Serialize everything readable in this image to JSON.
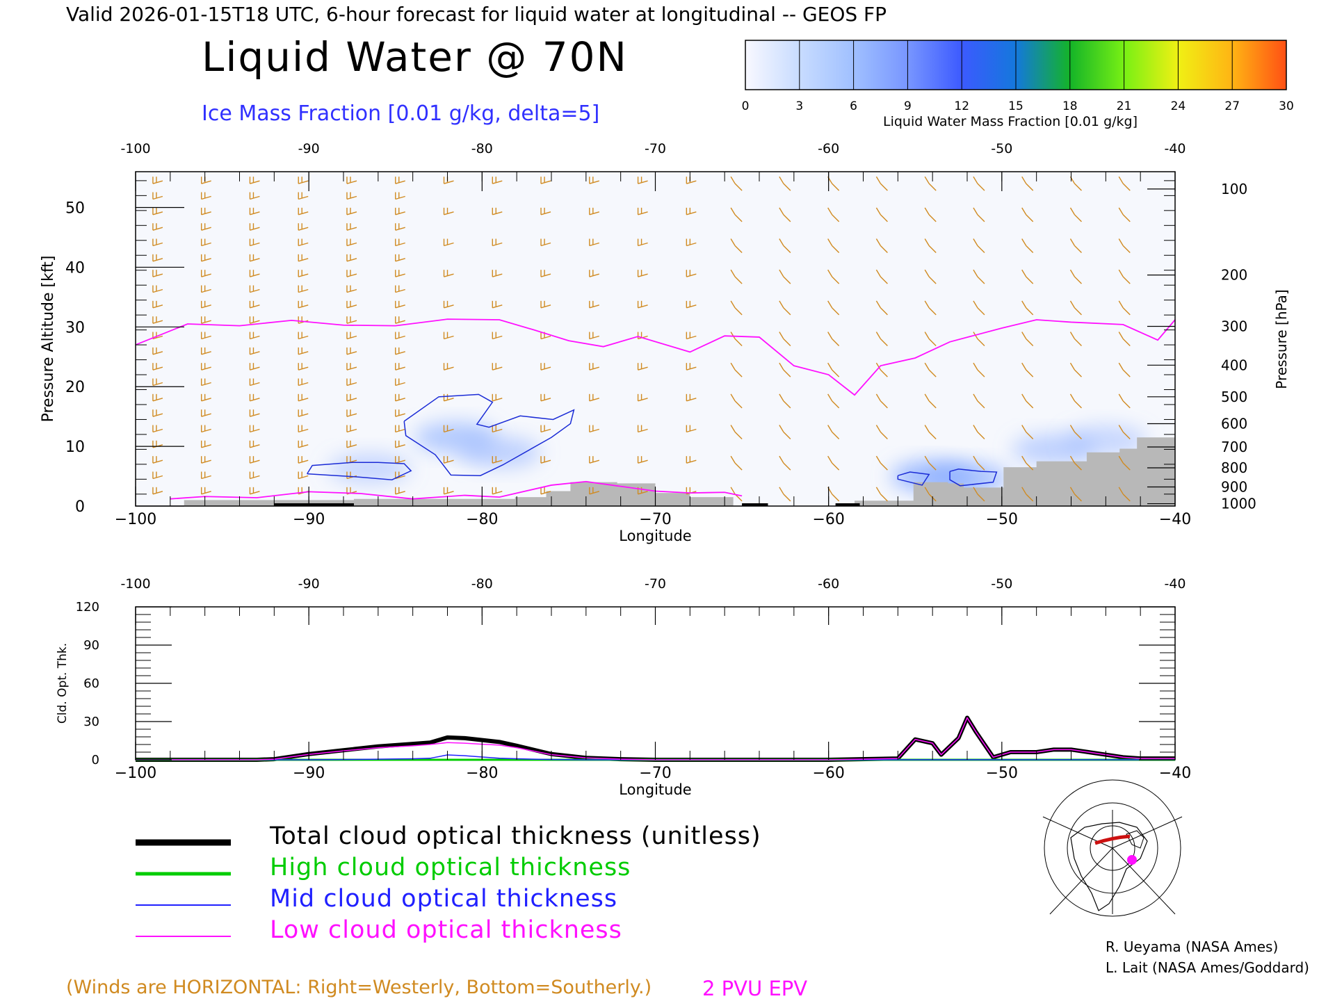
{
  "header": {
    "title_line": "Valid 2026-01-15T18 UTC, 6-hour forecast for liquid water at longitudinal -- GEOS FP",
    "main_title": "Liquid Water @ 70N",
    "contour_label": "Ice Mass Fraction [0.01 g/kg, delta=5]"
  },
  "colorbar": {
    "title": "Liquid Water Mass Fraction [0.01 g/kg]",
    "ticks": [
      "0",
      "3",
      "6",
      "9",
      "12",
      "15",
      "18",
      "21",
      "24",
      "27",
      "30"
    ],
    "colors": [
      "#f8f8ff",
      "#c8dcff",
      "#a0c0ff",
      "#7896ff",
      "#3c5aff",
      "#1478dc",
      "#14b428",
      "#78f014",
      "#f0f014",
      "#ffb414",
      "#ff5014"
    ]
  },
  "colors": {
    "ice_contour": "#1a2bd6",
    "epv_contour": "#ff10ff",
    "wind_barbs": "#d08a20",
    "terrain": "#b8b8b8",
    "total_line": "#000000",
    "high_line": "#00cc00",
    "mid_line": "#2020ff",
    "low_line": "#ff10ff"
  },
  "chart_data": [
    {
      "type": "heatmap",
      "xlabel": "Longitude",
      "ylabel_left": "Pressure Altitude [kft]",
      "ylabel_right": "Pressure [hPa]",
      "x_ticks": [
        "-100",
        "-90",
        "-80",
        "-70",
        "-60",
        "-50",
        "-40"
      ],
      "x_ticks_bottom": [
        "−100",
        "−90",
        "−80",
        "−70",
        "−60",
        "−50",
        "−40"
      ],
      "xlim": [
        -100,
        -40
      ],
      "y_ticks": [
        "0",
        "10",
        "20",
        "30",
        "40",
        "50"
      ],
      "ylim": [
        0,
        56
      ],
      "pressure_ticks": [
        {
          "label": "100",
          "kft": 53.1
        },
        {
          "label": "200",
          "kft": 38.7
        },
        {
          "label": "300",
          "kft": 30.1
        },
        {
          "label": "400",
          "kft": 23.6
        },
        {
          "label": "500",
          "kft": 18.3
        },
        {
          "label": "600",
          "kft": 13.8
        },
        {
          "label": "700",
          "kft": 9.9
        },
        {
          "label": "800",
          "kft": 6.4
        },
        {
          "label": "900",
          "kft": 3.2
        },
        {
          "label": "1000",
          "kft": 0.4
        }
      ],
      "epv_2pvu_tropopause": {
        "lon": [
          -100,
          -97,
          -94,
          -91,
          -88,
          -85,
          -82,
          -79,
          -77,
          -75,
          -73,
          -71,
          -68,
          -66,
          -64,
          -62,
          -60,
          -58.5,
          -57,
          -55,
          -53,
          -50,
          -48,
          -46,
          -43,
          -41,
          -40
        ],
        "kft": [
          27,
          30.5,
          30.2,
          31.1,
          30.3,
          30.2,
          31.3,
          31.2,
          29.5,
          27.7,
          26.7,
          28.4,
          25.8,
          28.5,
          28.3,
          23.5,
          22,
          18.6,
          23.5,
          24.8,
          27.5,
          29.8,
          31.2,
          30.8,
          30.4,
          27.8,
          31.2
        ]
      },
      "epv_low_contour": {
        "lon": [
          -98,
          -96,
          -93,
          -90,
          -87,
          -84,
          -81,
          -79,
          -76,
          -74,
          -72,
          -70,
          -68,
          -66,
          -65
        ],
        "kft": [
          1.2,
          1.6,
          1.4,
          2.4,
          2.1,
          1.2,
          1.8,
          1.5,
          3.5,
          4.1,
          3.3,
          2.5,
          2.2,
          2.3,
          1.7
        ]
      },
      "ice_contours": [
        {
          "lon": [
            -84.5,
            -82.5,
            -80.2,
            -79.4,
            -80.3,
            -79.6,
            -77.8,
            -75.9,
            -74.7,
            -74.9,
            -76,
            -78.8,
            -80.1,
            -81.8,
            -82.7,
            -84.4,
            -84.5
          ],
          "kft": [
            14.2,
            18.3,
            18.7,
            17.4,
            13.7,
            13.2,
            15.1,
            14.5,
            16.1,
            13.8,
            11.5,
            6.9,
            5.1,
            5.2,
            8.6,
            11.8,
            14.2
          ]
        },
        {
          "lon": [
            -90.1,
            -89.8,
            -87.5,
            -86,
            -84.5,
            -84.1,
            -85.2,
            -87.3,
            -90.1
          ],
          "kft": [
            5.4,
            6.8,
            7.3,
            7.3,
            7.1,
            5.9,
            4.4,
            4.9,
            5.4
          ]
        },
        {
          "lon": [
            -56,
            -55.3,
            -54.2,
            -54.6,
            -56,
            -56
          ],
          "kft": [
            5.1,
            5.7,
            5.3,
            3.5,
            4.5,
            5.1
          ]
        },
        {
          "lon": [
            -53,
            -52.5,
            -51.2,
            -50.3,
            -50.5,
            -52.4,
            -53,
            -53
          ],
          "kft": [
            5.8,
            6.2,
            5.8,
            5.7,
            4,
            3.4,
            4.4,
            5.8
          ]
        }
      ],
      "liquid_water_patches": [
        {
          "lon": -81.5,
          "kft": 11.5,
          "value": 4
        },
        {
          "lon": -79,
          "kft": 9,
          "value": 3
        },
        {
          "lon": -86.5,
          "kft": 6.3,
          "value": 2
        },
        {
          "lon": -54,
          "kft": 5,
          "value": 6
        },
        {
          "lon": -52,
          "kft": 4.6,
          "value": 5
        },
        {
          "lon": -47,
          "kft": 9.5,
          "value": 3
        },
        {
          "lon": -44,
          "kft": 11,
          "value": 2
        }
      ],
      "terrain_top_kft": [
        {
          "lon": [
            -100,
            -97.2
          ],
          "kft": 0
        },
        {
          "lon": [
            -97.2,
            -87.4
          ],
          "kft": 1
        },
        {
          "lon": [
            -87.4,
            -78.1
          ],
          "kft": 1.2
        },
        {
          "lon": [
            -78.1,
            -76.3
          ],
          "kft": 1.5
        },
        {
          "lon": [
            -76.3,
            -74.9
          ],
          "kft": 2.5
        },
        {
          "lon": [
            -74.9,
            -72.2
          ],
          "kft": 4
        },
        {
          "lon": [
            -72.2,
            -70
          ],
          "kft": 3.8
        },
        {
          "lon": [
            -70,
            -68
          ],
          "kft": 2.2
        },
        {
          "lon": [
            -68,
            -65.5
          ],
          "kft": 1.5
        },
        {
          "lon": [
            -58.5,
            -55.1
          ],
          "kft": 0.9
        },
        {
          "lon": [
            -55.1,
            -53.1
          ],
          "kft": 4
        },
        {
          "lon": [
            -53.1,
            -52.2
          ],
          "kft": 3.8
        },
        {
          "lon": [
            -52.2,
            -49.9
          ],
          "kft": 3.1
        },
        {
          "lon": [
            -49.9,
            -48
          ],
          "kft": 6.5
        },
        {
          "lon": [
            -48,
            -45.1
          ],
          "kft": 7.5
        },
        {
          "lon": [
            -45.1,
            -43.2
          ],
          "kft": 9
        },
        {
          "lon": [
            -43.2,
            -42.2
          ],
          "kft": 9.6
        },
        {
          "lon": [
            -42.2,
            -40
          ],
          "kft": 11.5
        }
      ]
    },
    {
      "type": "line",
      "xlabel": "Longitude",
      "ylabel": "Cld. Opt. Thk.",
      "x_ticks": [
        "-100",
        "-90",
        "-80",
        "-70",
        "-60",
        "-50",
        "-40"
      ],
      "x_ticks_bottom": [
        "−100",
        "−90",
        "−80",
        "−70",
        "−60",
        "−50",
        "−40"
      ],
      "xlim": [
        -100,
        -40
      ],
      "y_ticks": [
        "0",
        "30",
        "60",
        "90",
        "120"
      ],
      "ylim": [
        0,
        120
      ],
      "x": [
        -100,
        -93,
        -92,
        -90,
        -88,
        -86,
        -84,
        -83,
        -82,
        -81,
        -80,
        -79,
        -78,
        -76,
        -74,
        -72,
        -70,
        -60,
        -56,
        -55,
        -54,
        -53.5,
        -52.5,
        -52,
        -51.5,
        -50.5,
        -49.5,
        -48,
        -47,
        -46,
        -45,
        -43,
        -42,
        -40
      ],
      "series": [
        {
          "name": "Total cloud optical thickness (unitless)",
          "values": [
            0,
            0,
            0.5,
            4.5,
            7.5,
            10.5,
            12.5,
            13.5,
            17.5,
            17,
            15.5,
            14,
            11,
            4.5,
            1.5,
            0.5,
            0,
            0,
            1,
            16,
            13,
            4,
            17,
            33,
            22,
            2,
            6,
            6,
            8,
            8,
            6,
            2,
            1,
            1
          ]
        },
        {
          "name": "High cloud optical thickness",
          "values": [
            0,
            0,
            0,
            0,
            0,
            0,
            0,
            0,
            0,
            0,
            0,
            0,
            0,
            0,
            0,
            0,
            0,
            0,
            0,
            0,
            0,
            0,
            0,
            0,
            0,
            0,
            0,
            0,
            0,
            0,
            0,
            0,
            0,
            0
          ]
        },
        {
          "name": "Mid cloud optical thickness",
          "values": [
            0,
            0,
            0,
            0,
            0.2,
            0.5,
            0.8,
            1.2,
            3.8,
            3.2,
            2.2,
            1.2,
            0.8,
            0.2,
            0,
            0,
            0,
            0,
            0,
            0,
            0,
            0,
            0,
            0,
            0,
            0,
            0,
            0,
            0,
            0,
            0,
            0,
            0,
            0
          ]
        },
        {
          "name": "Low cloud optical thickness",
          "values": [
            0,
            0,
            0.5,
            4.2,
            7,
            9.5,
            11,
            12,
            13.5,
            13,
            12.2,
            11.5,
            9.5,
            4,
            1.5,
            0.5,
            0,
            0,
            1,
            16,
            13,
            4,
            17,
            33,
            22,
            2,
            6,
            6,
            8,
            8,
            6,
            2,
            1,
            1
          ]
        }
      ]
    }
  ],
  "legend": {
    "total": "Total cloud optical thickness (unitless)",
    "high": "High cloud optical thickness",
    "mid": "Mid cloud optical thickness",
    "low": "Low cloud optical thickness"
  },
  "inset_map": {
    "icon": "polar-stereographic-locator-map",
    "marker_color": "#ff10ff",
    "track_color": "#cc1010"
  },
  "footer": {
    "winds_note": "(Winds are HORIZONTAL: Right=Westerly, Bottom=Southerly.)",
    "epv_note": "2 PVU EPV",
    "credit_1": "R. Ueyama (NASA Ames)",
    "credit_2": "L. Lait (NASA Ames/Goddard)"
  }
}
